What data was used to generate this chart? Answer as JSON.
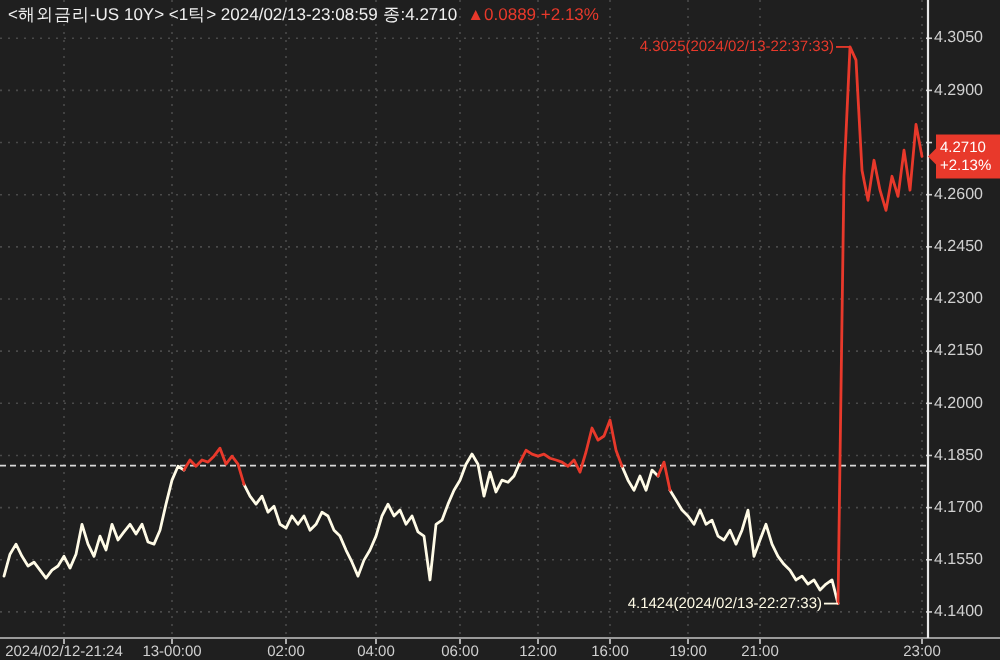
{
  "chart_data": {
    "type": "line",
    "title": "<해외금리-US 10Y> <1틱> 2024/02/13-23:08:59 종:4.2710",
    "subtitle": "▲0.0889 +2.13%",
    "categories": [
      null,
      null,
      null,
      null,
      null,
      null,
      null,
      null,
      null,
      null,
      "2024/02/12-21:24",
      null,
      null,
      null,
      null,
      null,
      null,
      null,
      null,
      null,
      null,
      null,
      null,
      null,
      null,
      null,
      null,
      null,
      "13-00:00",
      null,
      null,
      null,
      null,
      null,
      null,
      null,
      null,
      null,
      null,
      null,
      null,
      null,
      null,
      null,
      null,
      null,
      null,
      "02:00",
      null,
      null,
      null,
      null,
      null,
      null,
      null,
      null,
      null,
      null,
      null,
      null,
      null,
      null,
      "04:00",
      null,
      null,
      null,
      null,
      null,
      null,
      null,
      null,
      null,
      null,
      null,
      null,
      null,
      "06:00",
      null,
      null,
      null,
      null,
      null,
      null,
      null,
      null,
      null,
      null,
      null,
      null,
      "12:00",
      null,
      null,
      null,
      null,
      null,
      null,
      null,
      null,
      null,
      null,
      null,
      "16:00",
      null,
      null,
      null,
      null,
      null,
      null,
      null,
      null,
      null,
      null,
      null,
      null,
      "19:00",
      null,
      null,
      null,
      null,
      null,
      null,
      null,
      null,
      null,
      null,
      null,
      "21:00",
      null,
      null,
      null,
      null,
      null,
      null,
      null,
      null,
      null,
      null,
      null,
      null,
      null,
      null,
      null,
      null,
      null,
      null,
      null,
      null,
      null,
      null,
      null,
      null,
      null,
      null,
      "23:00"
    ],
    "series": [
      {
        "color": "#fffbe6",
        "values": [
          4.1503,
          4.1566,
          4.1595,
          4.156,
          4.1532,
          4.1543,
          4.152,
          4.1497,
          4.152,
          4.1532,
          4.156,
          4.1526,
          4.1566,
          4.1652,
          4.1595,
          4.156,
          4.1618,
          4.1578,
          4.1652,
          4.1607,
          4.163,
          4.1652,
          4.1624,
          4.1652,
          4.1601,
          4.1595,
          4.1635,
          4.171,
          4.1779,
          4.1819,
          4.1808,
          null,
          null,
          null,
          null,
          null,
          null,
          null,
          null,
          null,
          4.1767,
          4.1733,
          4.171,
          4.1733,
          4.1687,
          4.1704,
          4.1652,
          4.1641,
          4.1676,
          4.1652,
          4.1676,
          4.1635,
          4.1652,
          4.1687,
          4.1676,
          4.1635,
          4.1618,
          4.1578,
          4.1543,
          4.1503,
          4.1549,
          4.1578,
          4.1618,
          4.1676,
          4.171,
          4.1676,
          4.1693,
          4.1652,
          4.1676,
          4.163,
          4.1618,
          4.1492,
          4.1652,
          4.1664,
          4.171,
          4.175,
          4.1779,
          4.1825,
          4.1854,
          4.1825,
          4.1733,
          4.1802,
          4.1745,
          4.1779,
          4.1773,
          4.1791,
          4.1831,
          null,
          null,
          null,
          null,
          null,
          null,
          null,
          null,
          null,
          null,
          null,
          null,
          null,
          null,
          null,
          null,
          4.1819,
          4.1779,
          4.175,
          4.1791,
          4.175,
          4.1808,
          4.1791,
          null,
          4.175,
          4.1722,
          4.1693,
          4.1676,
          4.1652,
          4.1693,
          4.1652,
          4.1664,
          4.1618,
          4.1607,
          4.1635,
          4.1595,
          4.1635,
          4.1693,
          4.156,
          4.1607,
          4.1652,
          4.1595,
          4.156,
          4.1537,
          4.152,
          4.1492,
          4.1503,
          4.148,
          4.1492,
          4.1463,
          4.148,
          4.1492,
          4.1424,
          null,
          null,
          null,
          null,
          null,
          null,
          null,
          null,
          null,
          null,
          null,
          null,
          null,
          null
        ]
      },
      {
        "color": "#e8392b",
        "values": [
          null,
          null,
          null,
          null,
          null,
          null,
          null,
          null,
          null,
          null,
          null,
          null,
          null,
          null,
          null,
          null,
          null,
          null,
          null,
          null,
          null,
          null,
          null,
          null,
          null,
          null,
          null,
          null,
          null,
          null,
          4.1808,
          4.1837,
          4.1819,
          4.1837,
          4.1831,
          4.1848,
          4.1871,
          4.1825,
          4.1848,
          4.1825,
          4.1767,
          null,
          null,
          null,
          null,
          null,
          null,
          null,
          null,
          null,
          null,
          null,
          null,
          null,
          null,
          null,
          null,
          null,
          null,
          null,
          null,
          null,
          null,
          null,
          null,
          null,
          null,
          null,
          null,
          null,
          null,
          null,
          null,
          null,
          null,
          null,
          null,
          null,
          null,
          null,
          null,
          null,
          null,
          null,
          null,
          null,
          4.1831,
          4.1865,
          4.1854,
          4.1848,
          4.1854,
          4.1842,
          4.1837,
          4.1831,
          4.1819,
          4.1837,
          4.1802,
          4.186,
          4.1929,
          4.1894,
          4.1906,
          4.1952,
          4.1865,
          4.1819,
          null,
          null,
          null,
          null,
          null,
          4.1791,
          4.1831,
          4.175,
          null,
          null,
          null,
          null,
          null,
          null,
          null,
          null,
          null,
          null,
          null,
          null,
          null,
          null,
          null,
          null,
          null,
          null,
          null,
          null,
          null,
          null,
          null,
          null,
          null,
          null,
          null,
          4.1424,
          4.2653,
          4.3025,
          4.2987,
          4.267,
          4.2584,
          4.2699,
          4.2613,
          4.2555,
          4.2653,
          4.2595,
          4.2728,
          4.2613,
          4.2802,
          4.271
        ]
      }
    ],
    "ylim": [
      4.1325,
      4.316
    ],
    "yticks": [
      {
        "value": 4.305,
        "label": "4.3050"
      },
      {
        "value": 4.29,
        "label": "4.2900"
      },
      {
        "value": 4.275,
        "label": null
      },
      {
        "value": 4.26,
        "label": "4.2600"
      },
      {
        "value": 4.245,
        "label": "4.2450"
      },
      {
        "value": 4.23,
        "label": "4.2300"
      },
      {
        "value": 4.215,
        "label": "4.2150"
      },
      {
        "value": 4.2,
        "label": "4.2000"
      },
      {
        "value": 4.185,
        "label": "4.1850"
      },
      {
        "value": 4.17,
        "label": "4.1700"
      },
      {
        "value": 4.155,
        "label": "4.1550"
      },
      {
        "value": 4.14,
        "label": "4.1400"
      }
    ],
    "grid": true,
    "ref_lines": [
      {
        "axis": "y",
        "value": 4.1821,
        "color": "#d8d8d8",
        "line_style": "dashed"
      }
    ],
    "annotations": [
      "4.3025(2024/02/13-22:37:33)",
      "4.1424(2024/02/13-22:27:33)",
      "4.2710\n+2.13%"
    ]
  }
}
